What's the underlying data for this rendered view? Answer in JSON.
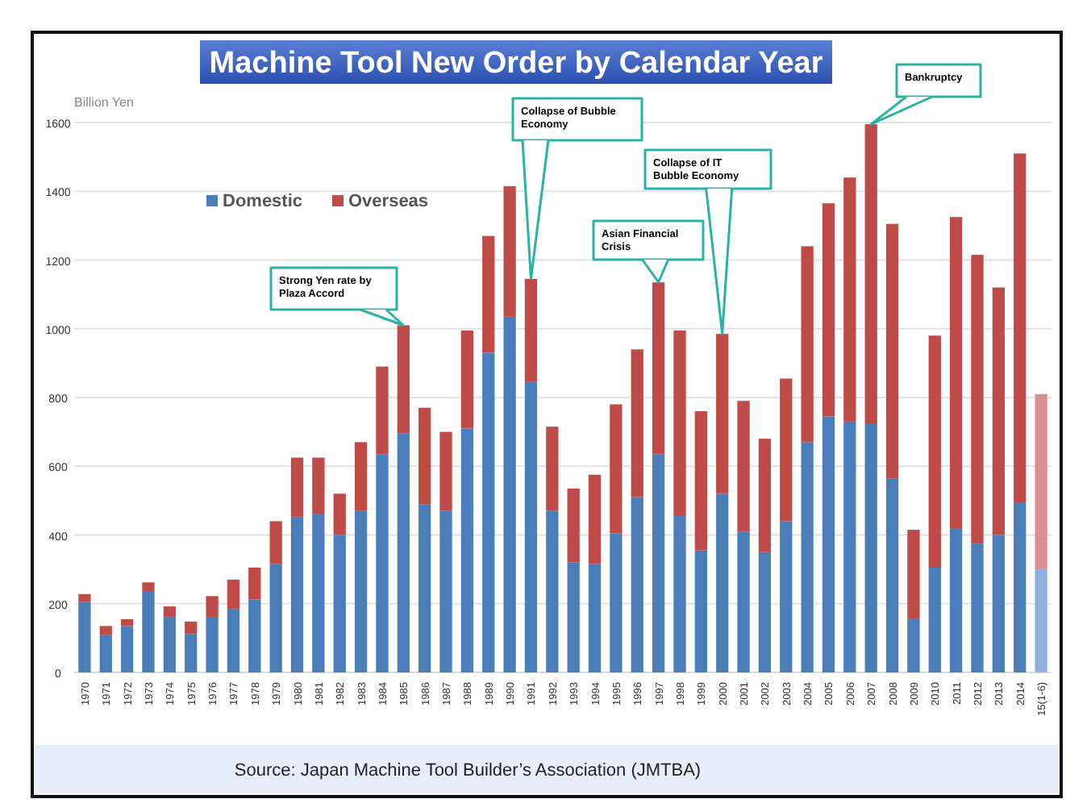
{
  "chart_data": {
    "type": "bar",
    "title": "Machine Tool New Order by Calendar Year",
    "ylabel": "Billion Yen",
    "stacked": true,
    "grid": "y",
    "legend": "top left",
    "categories": [
      "1970",
      "1971",
      "1972",
      "1973",
      "1974",
      "1975",
      "1976",
      "1977",
      "1978",
      "1979",
      "1980",
      "1981",
      "1982",
      "1983",
      "1984",
      "1985",
      "1986",
      "1987",
      "1988",
      "1989",
      "1990",
      "1991",
      "1992",
      "1993",
      "1994",
      "1995",
      "1996",
      "1997",
      "1998",
      "1999",
      "2000",
      "2001",
      "2002",
      "2003",
      "2004",
      "2005",
      "2006",
      "2007",
      "2008",
      "2009",
      "2010",
      "2011",
      "2012",
      "2013",
      "2014",
      "15(1-6)"
    ],
    "ylim": [
      0,
      1600
    ],
    "yticks": [
      0,
      200,
      400,
      600,
      800,
      1000,
      1200,
      1400,
      1600
    ],
    "series": [
      {
        "name": "Domestic",
        "color": "#4a7ebb",
        "colors": [
          "#4a7ebb",
          "#4a7ebb",
          "#4a7ebb",
          "#4a7ebb",
          "#4a7ebb",
          "#4a7ebb",
          "#4a7ebb",
          "#4a7ebb",
          "#4a7ebb",
          "#4a7ebb",
          "#4a7ebb",
          "#4a7ebb",
          "#4a7ebb",
          "#4a7ebb",
          "#4a7ebb",
          "#4a7ebb",
          "#4a7ebb",
          "#4a7ebb",
          "#4a7ebb",
          "#4a7ebb",
          "#4a7ebb",
          "#4a7ebb",
          "#4a7ebb",
          "#4a7ebb",
          "#4a7ebb",
          "#4a7ebb",
          "#4a7ebb",
          "#4a7ebb",
          "#4a7ebb",
          "#4a7ebb",
          "#4a7ebb",
          "#4a7ebb",
          "#4a7ebb",
          "#4a7ebb",
          "#4a7ebb",
          "#4a7ebb",
          "#4a7ebb",
          "#4a7ebb",
          "#4a7ebb",
          "#4a7ebb",
          "#4a7ebb",
          "#4a7ebb",
          "#4a7ebb",
          "#4a7ebb",
          "#4a7ebb",
          "#8fb0dc"
        ],
        "values": [
          205,
          110,
          135,
          237,
          160,
          112,
          162,
          185,
          212,
          315,
          452,
          462,
          400,
          470,
          635,
          695,
          490,
          470,
          710,
          930,
          1035,
          845,
          470,
          320,
          315,
          405,
          510,
          635,
          455,
          355,
          520,
          410,
          350,
          440,
          670,
          745,
          730,
          725,
          565,
          155,
          305,
          420,
          375,
          400,
          495,
          300
        ]
      },
      {
        "name": "Overseas",
        "color": "#be4b48",
        "colors": [
          "#be4b48",
          "#be4b48",
          "#be4b48",
          "#be4b48",
          "#be4b48",
          "#be4b48",
          "#be4b48",
          "#be4b48",
          "#be4b48",
          "#be4b48",
          "#be4b48",
          "#be4b48",
          "#be4b48",
          "#be4b48",
          "#be4b48",
          "#be4b48",
          "#be4b48",
          "#be4b48",
          "#be4b48",
          "#be4b48",
          "#be4b48",
          "#be4b48",
          "#be4b48",
          "#be4b48",
          "#be4b48",
          "#be4b48",
          "#be4b48",
          "#be4b48",
          "#be4b48",
          "#be4b48",
          "#be4b48",
          "#be4b48",
          "#be4b48",
          "#be4b48",
          "#be4b48",
          "#be4b48",
          "#be4b48",
          "#be4b48",
          "#be4b48",
          "#be4b48",
          "#be4b48",
          "#be4b48",
          "#be4b48",
          "#be4b48",
          "#be4b48",
          "#d9908e"
        ],
        "values": [
          23,
          25,
          20,
          25,
          32,
          36,
          60,
          85,
          93,
          125,
          173,
          163,
          120,
          200,
          255,
          315,
          280,
          230,
          285,
          340,
          380,
          300,
          245,
          215,
          260,
          375,
          430,
          500,
          540,
          405,
          465,
          380,
          330,
          415,
          570,
          620,
          710,
          870,
          740,
          260,
          675,
          905,
          840,
          720,
          1015,
          510
        ]
      }
    ],
    "annotations": [
      {
        "text": "Strong Yen rate by Plaza Accord",
        "x": "1985",
        "y": 1010
      },
      {
        "text": "Collapse of Bubble Economy",
        "x": "1991",
        "y": 1145
      },
      {
        "text": "Asian Financial Crisis",
        "x": "1997",
        "y": 1135
      },
      {
        "text": "Collapse of IT Bubble Economy",
        "x": "2000",
        "y": 985
      },
      {
        "text": "Bankruptcy",
        "x": "2007",
        "y": 1595
      },
      "Source: Japan Machine Tool Builder’s Association (JMTBA)"
    ]
  }
}
